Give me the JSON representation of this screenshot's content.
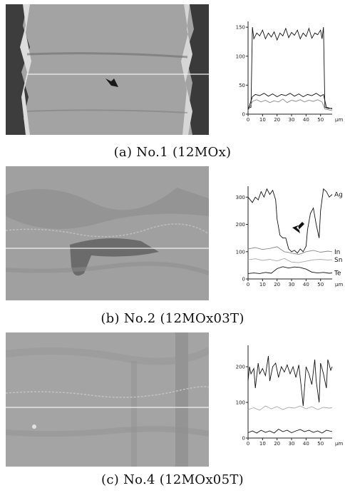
{
  "panels": [
    {
      "caption": "(a) No.1 (12MOx)",
      "axis_units": "μm",
      "element_labels": [],
      "chart_data": {
        "type": "line",
        "xlim": [
          0,
          58
        ],
        "ylim": [
          0,
          160
        ],
        "x_ticks": [
          0,
          10,
          20,
          30,
          40,
          50
        ],
        "y_ticks": [
          0,
          50,
          100,
          150
        ],
        "series": [
          {
            "values": [
              [
                0,
                10
              ],
              [
                2,
                12
              ],
              [
                3,
                150
              ],
              [
                4,
                130
              ],
              [
                6,
                140
              ],
              [
                8,
                135
              ],
              [
                10,
                145
              ],
              [
                12,
                130
              ],
              [
                14,
                140
              ],
              [
                16,
                133
              ],
              [
                18,
                142
              ],
              [
                20,
                128
              ],
              [
                22,
                140
              ],
              [
                24,
                135
              ],
              [
                26,
                148
              ],
              [
                28,
                132
              ],
              [
                30,
                141
              ],
              [
                32,
                136
              ],
              [
                34,
                145
              ],
              [
                36,
                130
              ],
              [
                38,
                140
              ],
              [
                40,
                134
              ],
              [
                42,
                148
              ],
              [
                44,
                131
              ],
              [
                46,
                140
              ],
              [
                48,
                137
              ],
              [
                50,
                145
              ],
              [
                51,
                130
              ],
              [
                52,
                150
              ],
              [
                53,
                12
              ],
              [
                55,
                10
              ],
              [
                58,
                10
              ]
            ],
            "color": "#111111"
          },
          {
            "values": [
              [
                0,
                8
              ],
              [
                3,
                30
              ],
              [
                5,
                34
              ],
              [
                8,
                32
              ],
              [
                11,
                36
              ],
              [
                14,
                31
              ],
              [
                17,
                35
              ],
              [
                20,
                30
              ],
              [
                23,
                34
              ],
              [
                26,
                32
              ],
              [
                29,
                36
              ],
              [
                32,
                31
              ],
              [
                35,
                35
              ],
              [
                38,
                30
              ],
              [
                41,
                34
              ],
              [
                44,
                32
              ],
              [
                47,
                36
              ],
              [
                50,
                31
              ],
              [
                52,
                34
              ],
              [
                54,
                12
              ],
              [
                58,
                9
              ]
            ],
            "color": "#111111"
          },
          {
            "values": [
              [
                0,
                6
              ],
              [
                3,
                22
              ],
              [
                6,
                25
              ],
              [
                9,
                21
              ],
              [
                12,
                24
              ],
              [
                15,
                20
              ],
              [
                18,
                23
              ],
              [
                21,
                21
              ],
              [
                24,
                26
              ],
              [
                27,
                20
              ],
              [
                30,
                24
              ],
              [
                33,
                22
              ],
              [
                36,
                25
              ],
              [
                39,
                21
              ],
              [
                42,
                24
              ],
              [
                45,
                22
              ],
              [
                48,
                25
              ],
              [
                51,
                21
              ],
              [
                53,
                9
              ],
              [
                58,
                6
              ]
            ],
            "color": "#888888"
          }
        ]
      }
    },
    {
      "caption": "(b) No.2 (12MOx03T)",
      "axis_units": "μm",
      "element_labels": [
        "Ag",
        "In",
        "Sn",
        "Te"
      ],
      "chart_data": {
        "type": "line",
        "xlim": [
          0,
          58
        ],
        "ylim": [
          0,
          340
        ],
        "x_ticks": [
          0,
          10,
          20,
          30,
          40,
          50
        ],
        "y_ticks": [
          0,
          100,
          200,
          300
        ],
        "series": [
          {
            "name": "Ag",
            "values": [
              [
                0,
                300
              ],
              [
                3,
                280
              ],
              [
                5,
                300
              ],
              [
                7,
                290
              ],
              [
                9,
                320
              ],
              [
                11,
                300
              ],
              [
                13,
                330
              ],
              [
                15,
                310
              ],
              [
                17,
                325
              ],
              [
                19,
                290
              ],
              [
                20,
                220
              ],
              [
                22,
                160
              ],
              [
                24,
                150
              ],
              [
                26,
                150
              ],
              [
                28,
                110
              ],
              [
                30,
                100
              ],
              [
                32,
                105
              ],
              [
                34,
                95
              ],
              [
                36,
                110
              ],
              [
                38,
                100
              ],
              [
                40,
                120
              ],
              [
                41,
                180
              ],
              [
                43,
                240
              ],
              [
                45,
                260
              ],
              [
                47,
                200
              ],
              [
                49,
                150
              ],
              [
                50,
                250
              ],
              [
                52,
                330
              ],
              [
                54,
                320
              ],
              [
                56,
                300
              ],
              [
                58,
                310
              ]
            ],
            "color": "#111111"
          },
          {
            "name": "In",
            "values": [
              [
                0,
                110
              ],
              [
                5,
                115
              ],
              [
                10,
                108
              ],
              [
                15,
                112
              ],
              [
                20,
                118
              ],
              [
                25,
                100
              ],
              [
                30,
                95
              ],
              [
                35,
                90
              ],
              [
                40,
                100
              ],
              [
                45,
                105
              ],
              [
                50,
                98
              ],
              [
                55,
                102
              ],
              [
                58,
                100
              ]
            ],
            "color": "#888888"
          },
          {
            "name": "Sn",
            "values": [
              [
                0,
                70
              ],
              [
                5,
                74
              ],
              [
                10,
                68
              ],
              [
                15,
                72
              ],
              [
                20,
                66
              ],
              [
                25,
                75
              ],
              [
                30,
                62
              ],
              [
                35,
                60
              ],
              [
                40,
                65
              ],
              [
                45,
                70
              ],
              [
                50,
                72
              ],
              [
                55,
                69
              ],
              [
                58,
                71
              ]
            ],
            "color": "#aaaaaa"
          },
          {
            "name": "Te",
            "values": [
              [
                0,
                20
              ],
              [
                4,
                22
              ],
              [
                8,
                20
              ],
              [
                12,
                24
              ],
              [
                16,
                21
              ],
              [
                20,
                38
              ],
              [
                24,
                45
              ],
              [
                28,
                40
              ],
              [
                32,
                44
              ],
              [
                36,
                42
              ],
              [
                40,
                36
              ],
              [
                44,
                25
              ],
              [
                48,
                22
              ],
              [
                52,
                24
              ],
              [
                56,
                21
              ],
              [
                58,
                22
              ]
            ],
            "color": "#111111"
          }
        ]
      }
    },
    {
      "caption": "(c) No.4 (12MOx05T)",
      "axis_units": "μm",
      "element_labels": [],
      "chart_data": {
        "type": "line",
        "xlim": [
          0,
          58
        ],
        "ylim": [
          0,
          260
        ],
        "x_ticks": [
          0,
          10,
          20,
          30,
          40,
          50
        ],
        "y_ticks": [
          0,
          100,
          200
        ],
        "series": [
          {
            "values": [
              [
                0,
                160
              ],
              [
                1,
                200
              ],
              [
                2,
                180
              ],
              [
                4,
                195
              ],
              [
                5,
                140
              ],
              [
                7,
                210
              ],
              [
                8,
                180
              ],
              [
                10,
                195
              ],
              [
                12,
                175
              ],
              [
                14,
                230
              ],
              [
                15,
                160
              ],
              [
                17,
                200
              ],
              [
                19,
                210
              ],
              [
                21,
                170
              ],
              [
                23,
                200
              ],
              [
                25,
                185
              ],
              [
                27,
                205
              ],
              [
                29,
                180
              ],
              [
                31,
                200
              ],
              [
                33,
                170
              ],
              [
                35,
                205
              ],
              [
                37,
                130
              ],
              [
                38,
                90
              ],
              [
                40,
                200
              ],
              [
                42,
                180
              ],
              [
                44,
                150
              ],
              [
                46,
                220
              ],
              [
                47,
                160
              ],
              [
                49,
                100
              ],
              [
                50,
                210
              ],
              [
                52,
                180
              ],
              [
                54,
                140
              ],
              [
                55,
                220
              ],
              [
                57,
                190
              ],
              [
                58,
                200
              ]
            ],
            "color": "#111111"
          },
          {
            "values": [
              [
                0,
                80
              ],
              [
                4,
                85
              ],
              [
                8,
                78
              ],
              [
                12,
                90
              ],
              [
                16,
                82
              ],
              [
                20,
                88
              ],
              [
                24,
                80
              ],
              [
                28,
                86
              ],
              [
                32,
                84
              ],
              [
                36,
                90
              ],
              [
                40,
                82
              ],
              [
                44,
                88
              ],
              [
                48,
                80
              ],
              [
                52,
                86
              ],
              [
                56,
                84
              ],
              [
                58,
                85
              ]
            ],
            "color": "#aaaaaa"
          },
          {
            "values": [
              [
                0,
                15
              ],
              [
                3,
                20
              ],
              [
                6,
                14
              ],
              [
                9,
                22
              ],
              [
                12,
                16
              ],
              [
                15,
                20
              ],
              [
                18,
                14
              ],
              [
                21,
                25
              ],
              [
                24,
                18
              ],
              [
                27,
                22
              ],
              [
                30,
                15
              ],
              [
                33,
                20
              ],
              [
                36,
                24
              ],
              [
                39,
                18
              ],
              [
                42,
                22
              ],
              [
                45,
                16
              ],
              [
                48,
                20
              ],
              [
                51,
                14
              ],
              [
                54,
                22
              ],
              [
                58,
                18
              ]
            ],
            "color": "#111111"
          }
        ]
      }
    }
  ]
}
